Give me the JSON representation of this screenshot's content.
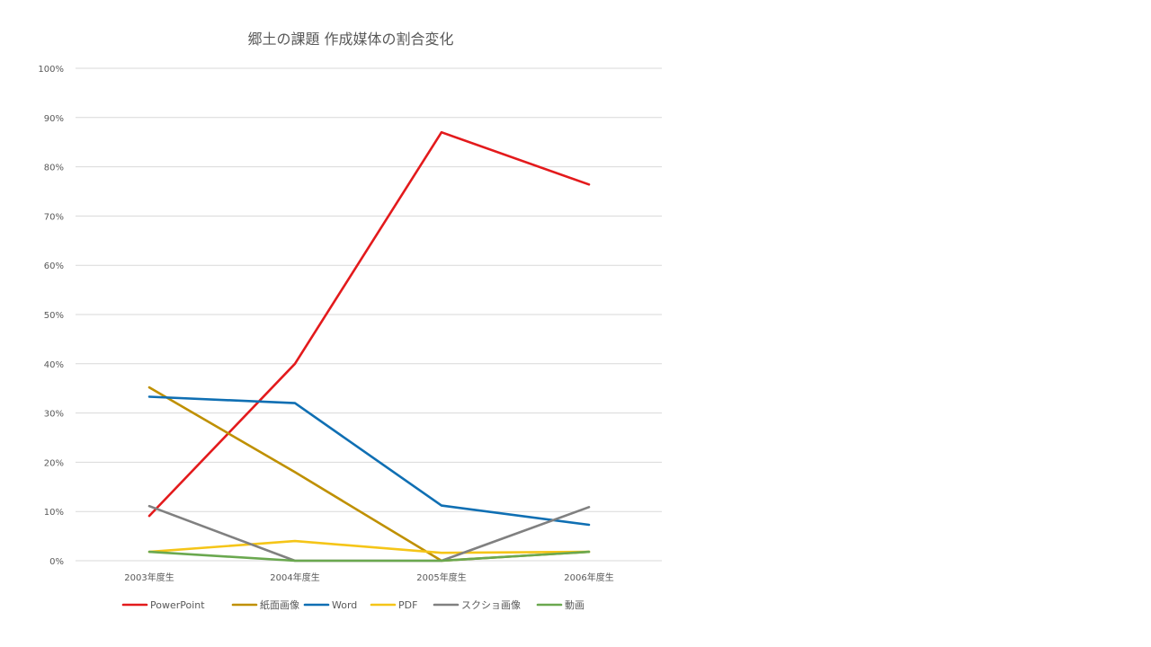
{
  "chart_data": {
    "type": "line",
    "title": "郷土の課題 作成媒体の割合変化",
    "categories": [
      "2003年度生",
      "2004年度生",
      "2005年度生",
      "2006年度生"
    ],
    "ylim": [
      0,
      100
    ],
    "yticks": [
      0,
      10,
      20,
      30,
      40,
      50,
      60,
      70,
      80,
      90,
      100
    ],
    "ytick_suffix": "%",
    "grid": true,
    "legend_position": "bottom",
    "series": [
      {
        "name": "PowerPoint",
        "color": "#e31a1c",
        "values": [
          9.1,
          40.0,
          87.0,
          76.4
        ]
      },
      {
        "name": "紙面画像",
        "color": "#bf9000",
        "values": [
          35.2,
          18.0,
          0,
          1.8
        ]
      },
      {
        "name": "Word",
        "color": "#0f6fb3",
        "values": [
          33.3,
          32.0,
          11.2,
          7.3
        ]
      },
      {
        "name": "PDF",
        "color": "#f5c518",
        "values": [
          1.8,
          4.0,
          1.6,
          1.8
        ]
      },
      {
        "name": "スクショ画像",
        "color": "#808080",
        "values": [
          11.1,
          0,
          0,
          10.9
        ]
      },
      {
        "name": "動画",
        "color": "#6aa84f",
        "values": [
          1.8,
          0,
          0,
          1.8
        ]
      }
    ]
  }
}
